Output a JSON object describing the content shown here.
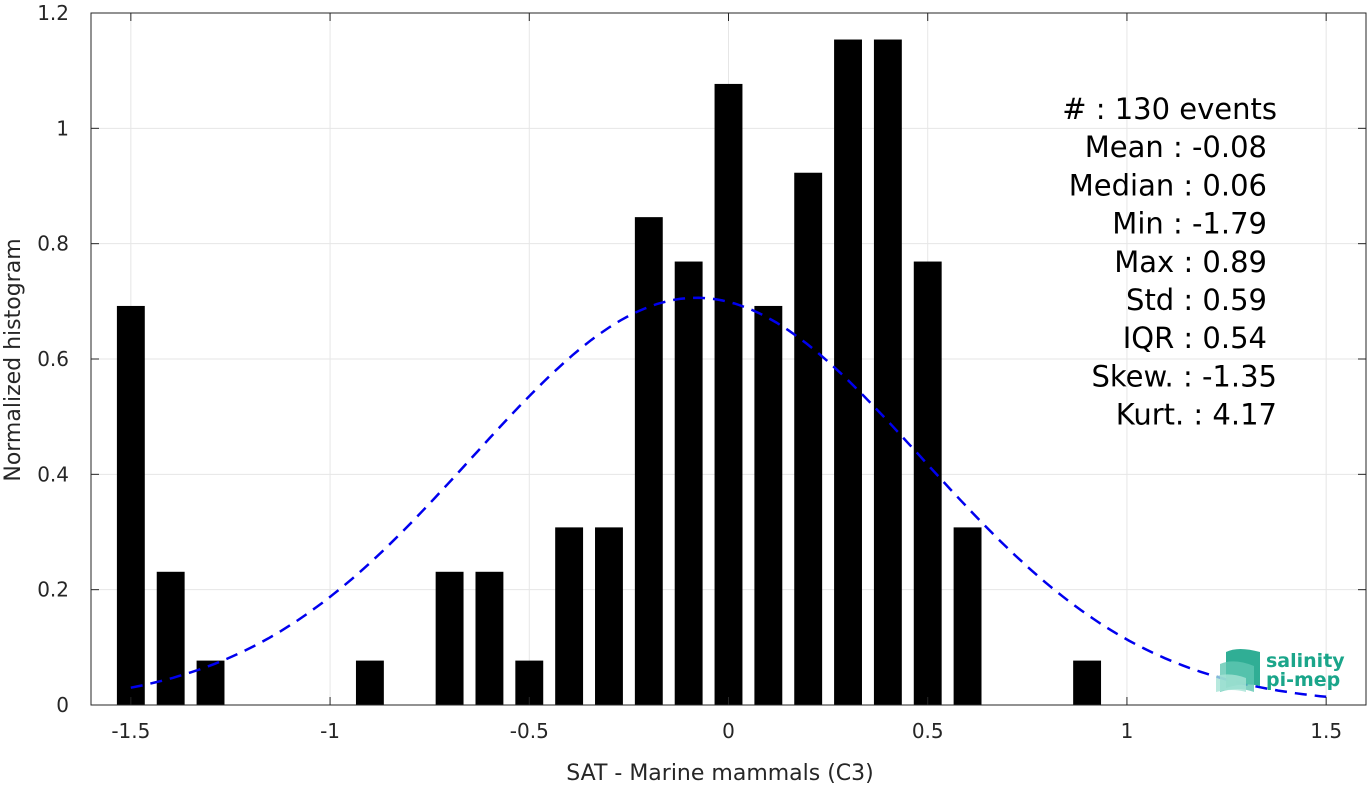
{
  "chart_data": {
    "type": "bar",
    "xlabel": "SAT - Marine mammals (C3)",
    "ylabel": "Normalized histogram",
    "xlim": [
      -1.6,
      1.6
    ],
    "ylim": [
      0,
      1.2
    ],
    "xticks": [
      -1.5,
      -1,
      -0.5,
      0,
      0.5,
      1,
      1.5
    ],
    "xtick_labels": [
      "-1.5",
      "-1",
      "-0.5",
      "0",
      "0.5",
      "1",
      "1.5"
    ],
    "yticks": [
      0,
      0.2,
      0.4,
      0.6,
      0.8,
      1,
      1.2
    ],
    "ytick_labels": [
      "0",
      "0.2",
      "0.4",
      "0.6",
      "0.8",
      "1",
      "1.2"
    ],
    "grid": true,
    "bar_width": 0.07,
    "bar_color": "#000000",
    "bars": {
      "x": [
        -1.5,
        -1.4,
        -1.3,
        -0.9,
        -0.7,
        -0.6,
        -0.5,
        -0.4,
        -0.3,
        -0.2,
        -0.1,
        0.0,
        0.1,
        0.2,
        0.3,
        0.4,
        0.5,
        0.6,
        0.9
      ],
      "values": [
        0.692,
        0.231,
        0.077,
        0.077,
        0.231,
        0.231,
        0.077,
        0.308,
        0.308,
        0.846,
        0.769,
        1.077,
        0.692,
        0.923,
        1.154,
        1.154,
        0.769,
        0.308,
        0.077
      ]
    },
    "fit_curve": {
      "style": "dashed",
      "color": "#0000ee",
      "mean": -0.08,
      "std": 0.565,
      "x_range": [
        -1.5,
        1.5
      ]
    },
    "stats": [
      "#  : 130 events",
      "Mean : -0.08",
      "Median : 0.06",
      "Min : -1.79",
      "Max : 0.89",
      "Std : 0.59",
      "IQR : 0.54",
      "Skew. : -1.35",
      "Kurt. : 4.17"
    ]
  },
  "logo": {
    "line1": "salinity",
    "line2": "pi-mep"
  }
}
